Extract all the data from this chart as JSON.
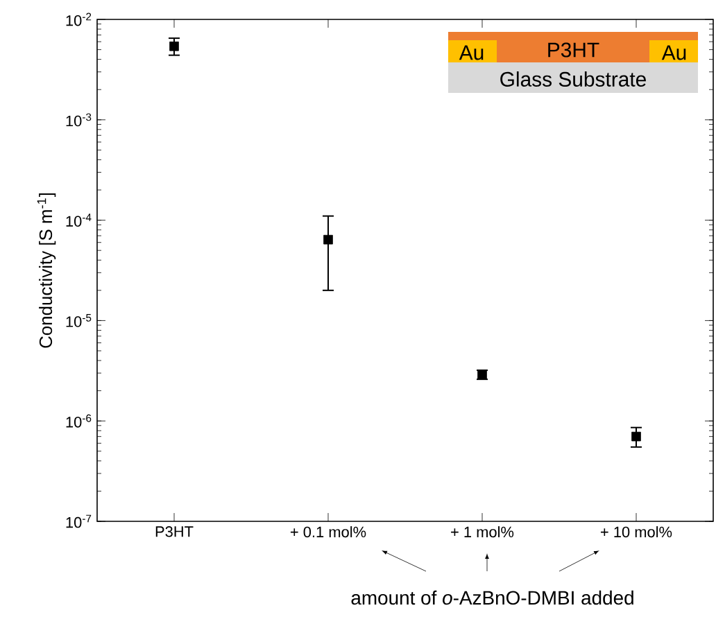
{
  "chart_data": {
    "type": "scatter",
    "ylabel": "Conductivity [S m$^{-1}$]",
    "categories": [
      "P3HT",
      "+ 0.1 mol%",
      "+ 1 mol%",
      "+ 10 mol%"
    ],
    "values": [
      0.0054,
      6.4e-05,
      2.9e-06,
      7e-07
    ],
    "errors": [
      [
        0.0044,
        0.0065
      ],
      [
        2e-05,
        0.00011
      ],
      [
        2.6e-06,
        3.2e-06
      ],
      [
        5.5e-07,
        8.6e-07
      ]
    ],
    "color": "#000000",
    "marker": "square",
    "log": "y",
    "grid": false,
    "ylim": [
      1e-07,
      0.01
    ],
    "yticks": [
      {
        "value": 1e-07,
        "label": "10$^{-7}$"
      },
      {
        "value": 1e-06,
        "label": "10$^{-6}$"
      },
      {
        "value": 1e-05,
        "label": "10$^{-5}$"
      },
      {
        "value": 0.0001,
        "label": "10$^{-4}$"
      },
      {
        "value": 0.001,
        "label": "10$^{-3}$"
      },
      {
        "value": 0.01,
        "label": "10$^{-2}$"
      }
    ],
    "annotations": [
      "Au",
      "P3HT",
      "Au",
      "Glass Substrate",
      "amount of *o*-AzBnO-DMBI added"
    ]
  }
}
